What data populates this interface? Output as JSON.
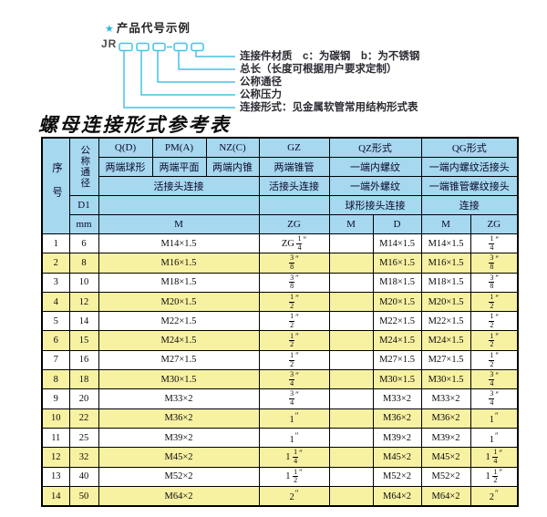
{
  "diagram": {
    "star": "★",
    "title": "产品代号示例",
    "code_prefix": "JR",
    "labels": [
      "连接件材质　c：为碳钢　b：为不锈钢",
      "总长（长度可根据用户要求定制）",
      "公称通径",
      "公称压力",
      "连接形式：见金属软管常用结构形式表"
    ]
  },
  "table_title": "螺母连接形式参考表",
  "colors": {
    "header_bg": "#a6d8f0",
    "row_alt_bg": "#f7f1a2",
    "diagram_line": "#45c0e8",
    "border": "#000000"
  },
  "table": {
    "header": {
      "seq": "序号",
      "dn": "公称通径",
      "d1": "D1",
      "mm": "mm",
      "row1": [
        "Q(D)",
        "PM(A)",
        "NZ(C)",
        "GZ",
        "QZ形式",
        "QG形式"
      ],
      "row2": [
        "两端球形",
        "两端平面",
        "两端内锥",
        "两端锥管",
        "一端内螺纹",
        "一端内螺纹活接头"
      ],
      "row3": [
        "活接头连接",
        "活接头连接",
        "一端外螺纹",
        "一端锥管螺纹接头"
      ],
      "row4": [
        "球形接头连接",
        "连接"
      ],
      "sub": [
        "M",
        "ZG",
        "M",
        "D",
        "M",
        "ZG"
      ]
    },
    "rows": [
      {
        "no": "1",
        "dn": "6",
        "m": "M14×1.5",
        "gz": "ZG 1/4″",
        "qz_m": "",
        "qz_d": "M14×1.5",
        "qg_m": "M14×1.5",
        "qg_zg": "1/4″"
      },
      {
        "no": "2",
        "dn": "8",
        "m": "M16×1.5",
        "gz": "3/8″",
        "qz_m": "",
        "qz_d": "M16×1.5",
        "qg_m": "M16×1.5",
        "qg_zg": "3/8″"
      },
      {
        "no": "3",
        "dn": "10",
        "m": "M18×1.5",
        "gz": "3/8″",
        "qz_m": "",
        "qz_d": "M18×1.5",
        "qg_m": "M18×1.5",
        "qg_zg": "3/8″"
      },
      {
        "no": "4",
        "dn": "12",
        "m": "M20×1.5",
        "gz": "1/2″",
        "qz_m": "",
        "qz_d": "M20×1.5",
        "qg_m": "M20×1.5",
        "qg_zg": "1/2″"
      },
      {
        "no": "5",
        "dn": "14",
        "m": "M22×1.5",
        "gz": "1/2″",
        "qz_m": "",
        "qz_d": "M22×1.5",
        "qg_m": "M22×1.5",
        "qg_zg": "1/2″"
      },
      {
        "no": "6",
        "dn": "15",
        "m": "M24×1.5",
        "gz": "1/2″",
        "qz_m": "",
        "qz_d": "M24×1.5",
        "qg_m": "M24×1.5",
        "qg_zg": "1/2″"
      },
      {
        "no": "7",
        "dn": "16",
        "m": "M27×1.5",
        "gz": "1/2″",
        "qz_m": "",
        "qz_d": "M27×1.5",
        "qg_m": "M27×1.5",
        "qg_zg": "1/2″"
      },
      {
        "no": "8",
        "dn": "18",
        "m": "M30×1.5",
        "gz": "3/4″",
        "qz_m": "",
        "qz_d": "M30×1.5",
        "qg_m": "M30×1.5",
        "qg_zg": "3/4″"
      },
      {
        "no": "9",
        "dn": "20",
        "m": "M33×2",
        "gz": "3/4″",
        "qz_m": "",
        "qz_d": "M33×2",
        "qg_m": "M33×2",
        "qg_zg": "3/4″"
      },
      {
        "no": "10",
        "dn": "22",
        "m": "M36×2",
        "gz": "1″",
        "qz_m": "",
        "qz_d": "M36×2",
        "qg_m": "M36×2",
        "qg_zg": "1″"
      },
      {
        "no": "11",
        "dn": "25",
        "m": "M39×2",
        "gz": "1″",
        "qz_m": "",
        "qz_d": "M39×2",
        "qg_m": "M39×2",
        "qg_zg": "1″"
      },
      {
        "no": "12",
        "dn": "32",
        "m": "M45×2",
        "gz": "1 1/4″",
        "qz_m": "",
        "qz_d": "M45×2",
        "qg_m": "M45×2",
        "qg_zg": "1 1/4″"
      },
      {
        "no": "13",
        "dn": "40",
        "m": "M52×2",
        "gz": "1 1/2″",
        "qz_m": "",
        "qz_d": "M52×2",
        "qg_m": "M52×2",
        "qg_zg": "1 1/2″"
      },
      {
        "no": "14",
        "dn": "50",
        "m": "M64×2",
        "gz": "2″",
        "qz_m": "",
        "qz_d": "M64×2",
        "qg_m": "M64×2",
        "qg_zg": "2″"
      }
    ]
  }
}
